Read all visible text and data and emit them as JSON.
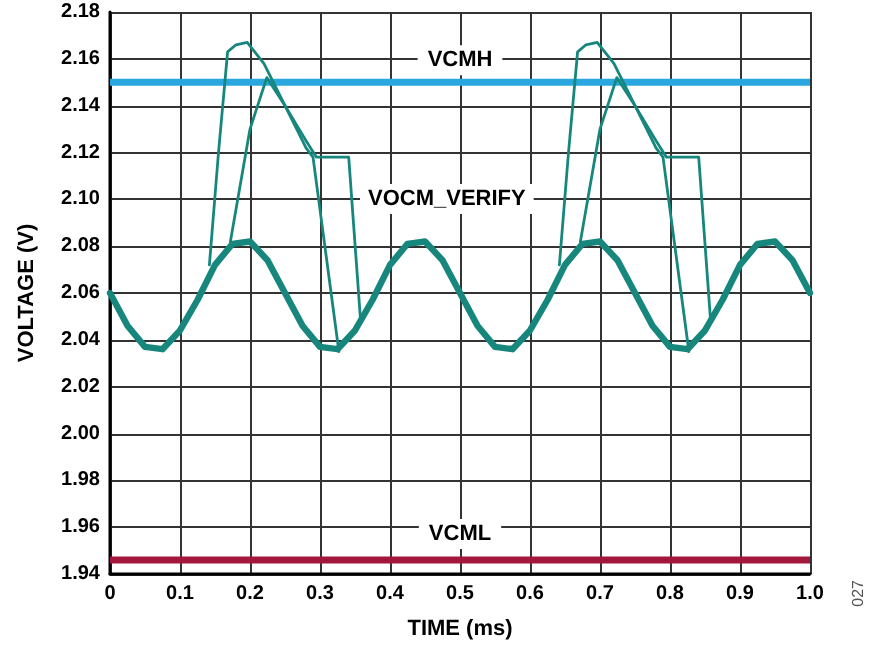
{
  "chart_data": {
    "type": "line",
    "xlabel": "TIME (ms)",
    "ylabel": "VOLTAGE (V)",
    "xlim": [
      0,
      1.0
    ],
    "ylim": [
      1.94,
      2.18
    ],
    "xticks": [
      0,
      0.1,
      0.2,
      0.3,
      0.4,
      0.5,
      0.6,
      0.7,
      0.8,
      0.9,
      {
        "value": 1.0,
        "label": "1.0"
      }
    ],
    "yticks": [
      1.94,
      1.96,
      1.98,
      {
        "value": 2.0,
        "label": "2.00"
      },
      2.02,
      2.04,
      2.06,
      2.08,
      {
        "value": 2.1,
        "label": "2.10"
      },
      2.12,
      2.14,
      2.16,
      2.18
    ],
    "grid": true,
    "marker": "none",
    "line_style": "solid",
    "series": [
      {
        "color": "#17877e",
        "x": [
          0,
          0.025,
          0.05,
          0.075,
          0.1,
          0.125,
          0.15,
          0.175,
          0.2,
          0.225,
          0.25,
          0.275,
          0.3,
          0.325,
          0.35,
          0.375,
          0.4,
          0.425,
          0.45,
          0.475,
          0.5,
          0.525,
          0.55,
          0.575,
          0.6,
          0.625,
          0.65,
          0.675,
          0.7,
          0.725,
          0.75,
          0.775,
          0.8,
          0.825,
          0.85,
          0.875,
          0.9,
          0.925,
          0.95,
          0.975,
          1.0
        ],
        "values": [
          2.06,
          2.046,
          2.037,
          2.036,
          2.044,
          2.057,
          2.072,
          2.081,
          2.082,
          2.074,
          2.06,
          2.046,
          2.037,
          2.036,
          2.044,
          2.057,
          2.072,
          2.081,
          2.082,
          2.074,
          2.06,
          2.046,
          2.037,
          2.036,
          2.044,
          2.057,
          2.072,
          2.081,
          2.082,
          2.074,
          2.06,
          2.046,
          2.037,
          2.036,
          2.044,
          2.057,
          2.072,
          2.081,
          2.082,
          2.074,
          2.06
        ]
      },
      {
        "color": "#17877e",
        "x": [
          0.142,
          0.155,
          0.168,
          0.18,
          0.196,
          0.22,
          0.25,
          0.28,
          0.295,
          0.341,
          0.358,
          0.5,
          0.642,
          0.655,
          0.668,
          0.68,
          0.696,
          0.72,
          0.75,
          0.78,
          0.795,
          0.841,
          0.858
        ],
        "values": [
          2.072,
          2.12,
          2.163,
          2.166,
          2.167,
          2.158,
          2.14,
          2.125,
          2.118,
          2.118,
          2.048,
          null,
          2.072,
          2.12,
          2.163,
          2.166,
          2.167,
          2.158,
          2.14,
          2.125,
          2.118,
          2.118,
          2.048
        ]
      },
      {
        "color": "#17877e",
        "x": [
          0.172,
          0.2,
          0.224,
          0.25,
          0.28,
          0.29,
          0.327,
          0.5,
          0.672,
          0.7,
          0.724,
          0.75,
          0.78,
          0.79,
          0.827
        ],
        "values": [
          2.082,
          2.13,
          2.152,
          2.14,
          2.122,
          2.118,
          2.035,
          null,
          2.082,
          2.13,
          2.152,
          2.14,
          2.122,
          2.118,
          2.035
        ]
      }
    ],
    "ref_lines": [
      {
        "axis": "y",
        "value": 2.15,
        "label": "VCMH",
        "color": "#2aa7de"
      },
      {
        "axis": "y",
        "value": 1.946,
        "label": "VCML",
        "color": "#a3173f"
      }
    ],
    "annotations": [
      "VOCM_VERIFY",
      "027"
    ]
  }
}
